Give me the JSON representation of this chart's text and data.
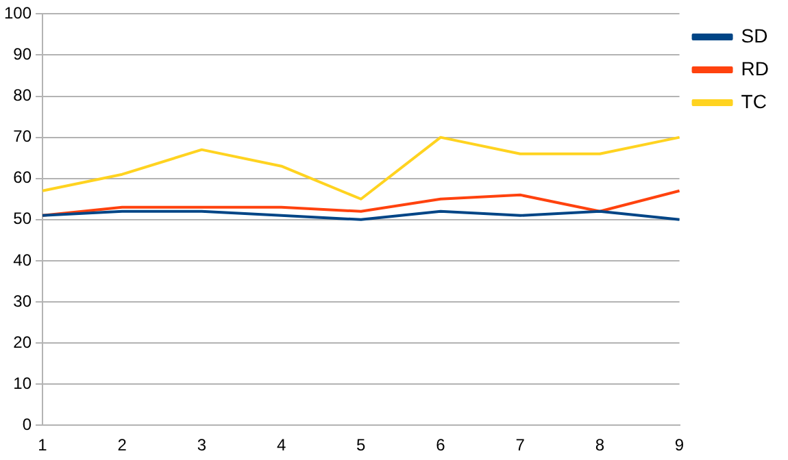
{
  "chart_data": {
    "type": "line",
    "categories": [
      "1",
      "2",
      "3",
      "4",
      "5",
      "6",
      "7",
      "8",
      "9"
    ],
    "series": [
      {
        "name": "SD",
        "color": "#004586",
        "values": [
          51,
          52,
          52,
          51,
          50,
          52,
          51,
          52,
          50
        ]
      },
      {
        "name": "RD",
        "color": "#ff420e",
        "values": [
          51,
          53,
          53,
          53,
          52,
          55,
          56,
          52,
          57
        ]
      },
      {
        "name": "TC",
        "color": "#ffd320",
        "values": [
          57,
          61,
          67,
          63,
          55,
          70,
          66,
          66,
          70
        ]
      }
    ],
    "ylim": [
      0,
      100
    ],
    "yticks": [
      0,
      10,
      20,
      30,
      40,
      50,
      60,
      70,
      80,
      90,
      100
    ],
    "grid": "y",
    "legend": "right",
    "marker": "none",
    "line_style": "solid"
  }
}
